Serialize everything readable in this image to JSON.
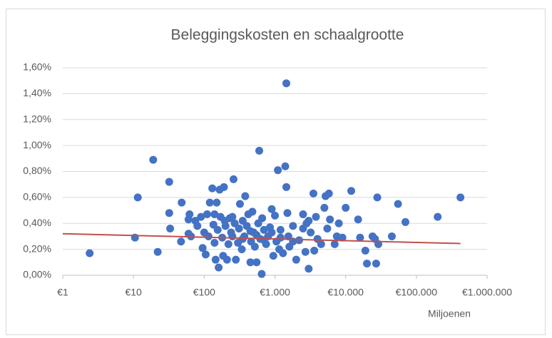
{
  "chart_data": {
    "type": "scatter",
    "title": "Beleggingskosten en schaalgrootte",
    "xlabel": "Miljoenen",
    "xscale": "log",
    "grid": true,
    "xlim": [
      1,
      1000000
    ],
    "xticks": [
      {
        "value": 1,
        "label": "€1"
      },
      {
        "value": 10,
        "label": "€10"
      },
      {
        "value": 100,
        "label": "€100"
      },
      {
        "value": 1000,
        "label": "€1.000"
      },
      {
        "value": 10000,
        "label": "€10.000"
      },
      {
        "value": 100000,
        "label": "€100.000"
      },
      {
        "value": 1000000,
        "label": "€1.000.000"
      }
    ],
    "ylim": [
      0,
      1.6
    ],
    "yticks": [
      {
        "value": 0,
        "label": "0,00%"
      },
      {
        "value": 0.2,
        "label": "0,20%"
      },
      {
        "value": 0.4,
        "label": "0,40%"
      },
      {
        "value": 0.6,
        "label": "0,60%"
      },
      {
        "value": 0.8,
        "label": "0,80%"
      },
      {
        "value": 1.0,
        "label": "1,00%"
      },
      {
        "value": 1.2,
        "label": "1,20%"
      },
      {
        "value": 1.4,
        "label": "1,40%"
      },
      {
        "value": 1.6,
        "label": "1,60%"
      }
    ],
    "series": [
      {
        "color": "#4472c4",
        "x": [
          2.4,
          10.5,
          11.5,
          19,
          22,
          32,
          32,
          33,
          48,
          47,
          62,
          60,
          65,
          60,
          75,
          80,
          90,
          95,
          100,
          105,
          110,
          115,
          120,
          130,
          135,
          140,
          140,
          145,
          150,
          155,
          160,
          165,
          170,
          180,
          185,
          190,
          195,
          200,
          210,
          220,
          230,
          240,
          250,
          260,
          270,
          280,
          300,
          310,
          320,
          340,
          350,
          370,
          380,
          400,
          420,
          450,
          460,
          480,
          500,
          520,
          550,
          580,
          600,
          620,
          650,
          660,
          700,
          750,
          800,
          850,
          900,
          950,
          1000,
          1050,
          1100,
          1150,
          1200,
          1300,
          1400,
          1450,
          1450,
          1500,
          1550,
          1600,
          1800,
          2000,
          2200,
          2500,
          2700,
          2800,
          3000,
          3200,
          3500,
          3600,
          3800,
          4000,
          4500,
          5000,
          5200,
          5500,
          5800,
          6000,
          7000,
          7500,
          8000,
          9000,
          10000,
          12000,
          15000,
          16000,
          19000,
          20000,
          24000,
          26000,
          27000,
          28000,
          29000,
          45000,
          55000,
          70000,
          200000,
          420000,
          250,
          350,
          450,
          550,
          700,
          900,
          1200,
          1800,
          2500,
          3000
        ],
        "values": [
          0.17,
          0.29,
          0.6,
          0.89,
          0.18,
          0.72,
          0.48,
          0.36,
          0.56,
          0.26,
          0.47,
          0.32,
          0.3,
          0.43,
          0.42,
          0.38,
          0.45,
          0.21,
          0.33,
          0.16,
          0.47,
          0.3,
          0.56,
          0.67,
          0.39,
          0.47,
          0.25,
          0.12,
          0.56,
          0.35,
          0.06,
          0.66,
          0.45,
          0.29,
          0.15,
          0.68,
          0.42,
          0.38,
          0.12,
          0.24,
          0.44,
          0.33,
          0.45,
          0.74,
          0.4,
          0.12,
          0.25,
          0.36,
          0.55,
          0.2,
          0.42,
          0.3,
          0.61,
          0.38,
          0.47,
          0.1,
          0.26,
          0.49,
          0.33,
          0.22,
          0.1,
          0.4,
          0.96,
          0.28,
          0.01,
          0.44,
          0.35,
          0.24,
          0.3,
          0.37,
          0.51,
          0.15,
          0.46,
          0.26,
          0.81,
          0.2,
          0.35,
          0.17,
          0.84,
          1.48,
          0.68,
          0.48,
          0.3,
          0.22,
          0.38,
          0.12,
          0.27,
          0.47,
          0.18,
          0.4,
          0.05,
          0.33,
          0.63,
          0.19,
          0.45,
          0.28,
          0.24,
          0.52,
          0.61,
          0.36,
          0.63,
          0.43,
          0.24,
          0.3,
          0.4,
          0.29,
          0.52,
          0.65,
          0.43,
          0.29,
          0.19,
          0.09,
          0.3,
          0.28,
          0.09,
          0.6,
          0.24,
          0.3,
          0.55,
          0.41,
          0.45,
          0.6,
          0.3,
          0.28,
          0.34,
          0.31,
          0.27,
          0.33,
          0.29,
          0.26,
          0.36,
          0.42
        ]
      }
    ],
    "trendline": {
      "color": "#c0504d",
      "x": [
        1,
        420000
      ],
      "values": [
        0.32,
        0.245
      ]
    }
  }
}
